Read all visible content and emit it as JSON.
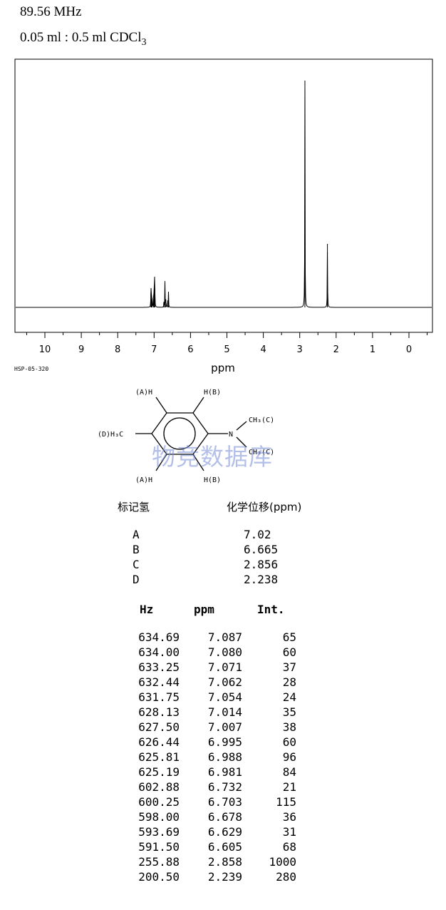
{
  "header": {
    "frequency": "89.56 MHz",
    "solvent_main": "0.05 ml : 0.5 ml CDCl",
    "solvent_sub": "3"
  },
  "spectrum_code": "HSP-05-320",
  "watermark": "物竞数据库",
  "chart_data": {
    "type": "line",
    "title": "",
    "xlabel": "ppm",
    "ylabel": "",
    "xlim": [
      10.8,
      -0.7
    ],
    "x_reversed": true,
    "xticks": [
      "10",
      "9",
      "8",
      "7",
      "6",
      "5",
      "4",
      "3",
      "2",
      "1",
      "0"
    ],
    "x_tick_values": [
      10,
      9,
      8,
      7,
      6,
      5,
      4,
      3,
      2,
      1,
      0
    ],
    "grid": false,
    "peaks": [
      {
        "ppm": 7.087,
        "intensity": 65
      },
      {
        "ppm": 7.08,
        "intensity": 60
      },
      {
        "ppm": 7.071,
        "intensity": 37
      },
      {
        "ppm": 7.062,
        "intensity": 28
      },
      {
        "ppm": 7.054,
        "intensity": 24
      },
      {
        "ppm": 7.014,
        "intensity": 35
      },
      {
        "ppm": 7.007,
        "intensity": 38
      },
      {
        "ppm": 6.995,
        "intensity": 60
      },
      {
        "ppm": 6.988,
        "intensity": 96
      },
      {
        "ppm": 6.981,
        "intensity": 84
      },
      {
        "ppm": 6.732,
        "intensity": 21
      },
      {
        "ppm": 6.703,
        "intensity": 115
      },
      {
        "ppm": 6.678,
        "intensity": 36
      },
      {
        "ppm": 6.629,
        "intensity": 31
      },
      {
        "ppm": 6.605,
        "intensity": 68
      },
      {
        "ppm": 2.858,
        "intensity": 1000
      },
      {
        "ppm": 2.239,
        "intensity": 280
      }
    ],
    "line_color": "#000000"
  },
  "molecule": {
    "labels": {
      "a_top": "(A)H",
      "b_top": "H(B)",
      "ch3_c1": "CH₃(C)",
      "d_ch3": "(D)H₃C",
      "n": "N",
      "ch3_c2": "CH₃(C)",
      "a_bot": "(A)H",
      "b_bot": "H(B)"
    }
  },
  "assignment": {
    "label_header": "标记氢",
    "shift_header": "化学位移(ppm)",
    "rows": [
      {
        "label": "A",
        "shift": "7.02"
      },
      {
        "label": "B",
        "shift": "6.665"
      },
      {
        "label": "C",
        "shift": "2.856"
      },
      {
        "label": "D",
        "shift": "2.238"
      }
    ]
  },
  "peak_table": {
    "headers": [
      "Hz",
      "ppm",
      "Int."
    ],
    "rows": [
      [
        "634.69",
        "7.087",
        "65"
      ],
      [
        "634.00",
        "7.080",
        "60"
      ],
      [
        "633.25",
        "7.071",
        "37"
      ],
      [
        "632.44",
        "7.062",
        "28"
      ],
      [
        "631.75",
        "7.054",
        "24"
      ],
      [
        "628.13",
        "7.014",
        "35"
      ],
      [
        "627.50",
        "7.007",
        "38"
      ],
      [
        "626.44",
        "6.995",
        "60"
      ],
      [
        "625.81",
        "6.988",
        "96"
      ],
      [
        "625.19",
        "6.981",
        "84"
      ],
      [
        "602.88",
        "6.732",
        "21"
      ],
      [
        "600.25",
        "6.703",
        "115"
      ],
      [
        "598.00",
        "6.678",
        "36"
      ],
      [
        "593.69",
        "6.629",
        "31"
      ],
      [
        "591.50",
        "6.605",
        "68"
      ],
      [
        "255.88",
        "2.858",
        "1000"
      ],
      [
        "200.50",
        "2.239",
        "280"
      ]
    ]
  }
}
